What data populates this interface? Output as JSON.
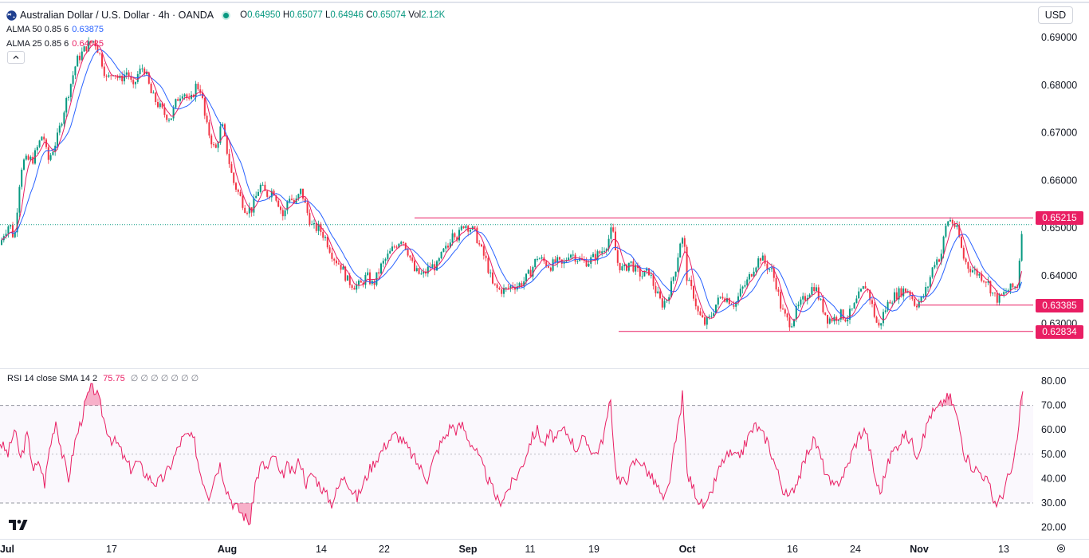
{
  "header": {
    "symbol_title": "Australian Dollar / U.S. Dollar · 4h · OANDA",
    "ohlc": [
      {
        "label": "O",
        "value": "0.64950"
      },
      {
        "label": "H",
        "value": "0.65077"
      },
      {
        "label": "L",
        "value": "0.64946"
      },
      {
        "label": "C",
        "value": "0.65074"
      },
      {
        "label": "Vol",
        "value": "2.12K"
      }
    ],
    "currency": "USD"
  },
  "indicators": {
    "alma50": {
      "name": "ALMA 50 0.85 6",
      "value": "0.63875",
      "color": "#2962ff"
    },
    "alma25": {
      "name": "ALMA 25 0.85 6",
      "value": "0.64025",
      "color": "#e91e63"
    },
    "rsi": {
      "name": "RSI 14 close SMA 14 2",
      "value": "75.75",
      "color": "#e91e63",
      "extras": "∅ ∅ ∅ ∅ ∅ ∅ ∅"
    }
  },
  "price_axis": {
    "ticks": [
      "0.69000",
      "0.68000",
      "0.67000",
      "0.66000",
      "0.65000",
      "0.64000",
      "0.63000"
    ],
    "badges": [
      "0.65215",
      "0.63385",
      "0.62834"
    ]
  },
  "rsi_axis": {
    "ticks": [
      "80.00",
      "70.00",
      "60.00",
      "50.00",
      "40.00",
      "30.00",
      "20.00"
    ]
  },
  "time_axis": {
    "ticks": [
      "Jul",
      "17",
      "Aug",
      "14",
      "22",
      "Sep",
      "11",
      "19",
      "Oct",
      "16",
      "24",
      "Nov",
      "13"
    ],
    "bold": [
      "Jul",
      "Aug",
      "Sep",
      "Oct",
      "Nov"
    ]
  },
  "colors": {
    "up": "#089981",
    "down": "#f23645",
    "accent": "#e91e63",
    "grid": "#e0e3eb"
  },
  "icons": {
    "logo": "tradingview-logo-icon",
    "settings": "gear-icon",
    "collapse": "chevron-up-icon",
    "flag": "australia-flag-icon",
    "status": "market-status-dot-icon"
  },
  "chart_data": {
    "type": "candlestick",
    "timeframe": "4h",
    "ylim": [
      0.625,
      0.695
    ],
    "support_resistance": [
      0.65215,
      0.63385,
      0.62834
    ],
    "last_close": 0.65074,
    "close_path": [
      [
        0,
        0.6465
      ],
      [
        5,
        0.649
      ],
      [
        12,
        0.651
      ],
      [
        18,
        0.6475
      ],
      [
        26,
        0.6625
      ],
      [
        30,
        0.664
      ],
      [
        42,
        0.6645
      ],
      [
        45,
        0.666
      ],
      [
        54,
        0.67
      ],
      [
        60,
        0.664
      ],
      [
        65,
        0.666
      ],
      [
        72,
        0.669
      ],
      [
        82,
        0.676
      ],
      [
        96,
        0.685
      ],
      [
        108,
        0.688
      ],
      [
        118,
        0.6895
      ],
      [
        126,
        0.686
      ],
      [
        134,
        0.681
      ],
      [
        142,
        0.683
      ],
      [
        150,
        0.681
      ],
      [
        160,
        0.683
      ],
      [
        167,
        0.679
      ],
      [
        172,
        0.682
      ],
      [
        180,
        0.684
      ],
      [
        190,
        0.678
      ],
      [
        198,
        0.676
      ],
      [
        206,
        0.674
      ],
      [
        214,
        0.673
      ],
      [
        222,
        0.677
      ],
      [
        230,
        0.679
      ],
      [
        238,
        0.676
      ],
      [
        246,
        0.68
      ],
      [
        252,
        0.679
      ],
      [
        258,
        0.672
      ],
      [
        264,
        0.669
      ],
      [
        270,
        0.666
      ],
      [
        278,
        0.672
      ],
      [
        285,
        0.666
      ],
      [
        292,
        0.66
      ],
      [
        300,
        0.657
      ],
      [
        308,
        0.654
      ],
      [
        316,
        0.654
      ],
      [
        326,
        0.659
      ],
      [
        334,
        0.657
      ],
      [
        343,
        0.658
      ],
      [
        350,
        0.655
      ],
      [
        356,
        0.652
      ],
      [
        362,
        0.657
      ],
      [
        370,
        0.655
      ],
      [
        378,
        0.658
      ],
      [
        384,
        0.654
      ],
      [
        392,
        0.65
      ],
      [
        400,
        0.65
      ],
      [
        408,
        0.648
      ],
      [
        418,
        0.644
      ],
      [
        428,
        0.642
      ],
      [
        436,
        0.639
      ],
      [
        444,
        0.638
      ],
      [
        452,
        0.638
      ],
      [
        460,
        0.64
      ],
      [
        468,
        0.638
      ],
      [
        478,
        0.642
      ],
      [
        486,
        0.644
      ],
      [
        494,
        0.646
      ],
      [
        504,
        0.648
      ],
      [
        512,
        0.645
      ],
      [
        520,
        0.641
      ],
      [
        530,
        0.64
      ],
      [
        540,
        0.642
      ],
      [
        548,
        0.642
      ],
      [
        556,
        0.645
      ],
      [
        562,
        0.646
      ],
      [
        568,
        0.65
      ],
      [
        574,
        0.648
      ],
      [
        582,
        0.651
      ],
      [
        590,
        0.65
      ],
      [
        596,
        0.649
      ],
      [
        602,
        0.646
      ],
      [
        610,
        0.643
      ],
      [
        618,
        0.638
      ],
      [
        626,
        0.637
      ],
      [
        634,
        0.637
      ],
      [
        642,
        0.638
      ],
      [
        650,
        0.638
      ],
      [
        658,
        0.639
      ],
      [
        666,
        0.641
      ],
      [
        674,
        0.644
      ],
      [
        682,
        0.643
      ],
      [
        690,
        0.642
      ],
      [
        698,
        0.643
      ],
      [
        706,
        0.642
      ],
      [
        714,
        0.645
      ],
      [
        722,
        0.644
      ],
      [
        730,
        0.643
      ],
      [
        738,
        0.643
      ],
      [
        746,
        0.644
      ],
      [
        754,
        0.645
      ],
      [
        762,
        0.647
      ],
      [
        768,
        0.65
      ],
      [
        774,
        0.643
      ],
      [
        782,
        0.641
      ],
      [
        790,
        0.643
      ],
      [
        798,
        0.641
      ],
      [
        806,
        0.64
      ],
      [
        814,
        0.641
      ],
      [
        822,
        0.637
      ],
      [
        830,
        0.634
      ],
      [
        836,
        0.635
      ],
      [
        842,
        0.638
      ],
      [
        848,
        0.642
      ],
      [
        854,
        0.648
      ],
      [
        858,
        0.647
      ],
      [
        862,
        0.639
      ],
      [
        870,
        0.636
      ],
      [
        876,
        0.632
      ],
      [
        884,
        0.63
      ],
      [
        890,
        0.631
      ],
      [
        898,
        0.634
      ],
      [
        906,
        0.636
      ],
      [
        914,
        0.635
      ],
      [
        922,
        0.634
      ],
      [
        930,
        0.637
      ],
      [
        938,
        0.639
      ],
      [
        946,
        0.642
      ],
      [
        954,
        0.644
      ],
      [
        962,
        0.642
      ],
      [
        968,
        0.641
      ],
      [
        974,
        0.638
      ],
      [
        980,
        0.633
      ],
      [
        986,
        0.631
      ],
      [
        992,
        0.63
      ],
      [
        1000,
        0.633
      ],
      [
        1008,
        0.635
      ],
      [
        1016,
        0.637
      ],
      [
        1022,
        0.638
      ],
      [
        1030,
        0.634
      ],
      [
        1038,
        0.631
      ],
      [
        1046,
        0.631
      ],
      [
        1054,
        0.632
      ],
      [
        1062,
        0.631
      ],
      [
        1070,
        0.633
      ],
      [
        1078,
        0.636
      ],
      [
        1086,
        0.638
      ],
      [
        1092,
        0.635
      ],
      [
        1098,
        0.631
      ],
      [
        1102,
        0.629
      ],
      [
        1108,
        0.632
      ],
      [
        1116,
        0.635
      ],
      [
        1124,
        0.636
      ],
      [
        1132,
        0.637
      ],
      [
        1140,
        0.637
      ],
      [
        1148,
        0.634
      ],
      [
        1156,
        0.635
      ],
      [
        1164,
        0.638
      ],
      [
        1172,
        0.643
      ],
      [
        1180,
        0.644
      ],
      [
        1186,
        0.65
      ],
      [
        1190,
        0.652
      ],
      [
        1196,
        0.651
      ],
      [
        1202,
        0.649
      ],
      [
        1208,
        0.644
      ],
      [
        1214,
        0.642
      ],
      [
        1222,
        0.641
      ],
      [
        1230,
        0.64
      ],
      [
        1238,
        0.639
      ],
      [
        1246,
        0.636
      ],
      [
        1252,
        0.635
      ],
      [
        1258,
        0.636
      ],
      [
        1264,
        0.637
      ],
      [
        1270,
        0.6375
      ],
      [
        1276,
        0.638
      ],
      [
        1279,
        0.644
      ],
      [
        1281,
        0.6495
      ],
      [
        1283,
        0.6507
      ]
    ],
    "rsi_path": [
      [
        0,
        55
      ],
      [
        10,
        50
      ],
      [
        18,
        60
      ],
      [
        26,
        48
      ],
      [
        34,
        58
      ],
      [
        42,
        44
      ],
      [
        50,
        46
      ],
      [
        56,
        38
      ],
      [
        62,
        52
      ],
      [
        70,
        64
      ],
      [
        78,
        50
      ],
      [
        86,
        40
      ],
      [
        94,
        55
      ],
      [
        102,
        64
      ],
      [
        108,
        72
      ],
      [
        114,
        77
      ],
      [
        120,
        76
      ],
      [
        126,
        70
      ],
      [
        132,
        62
      ],
      [
        140,
        56
      ],
      [
        148,
        54
      ],
      [
        156,
        48
      ],
      [
        164,
        44
      ],
      [
        172,
        47
      ],
      [
        180,
        43
      ],
      [
        188,
        40
      ],
      [
        196,
        38
      ],
      [
        204,
        40
      ],
      [
        212,
        44
      ],
      [
        220,
        50
      ],
      [
        228,
        56
      ],
      [
        236,
        58
      ],
      [
        244,
        55
      ],
      [
        250,
        44
      ],
      [
        256,
        38
      ],
      [
        262,
        33
      ],
      [
        268,
        40
      ],
      [
        276,
        46
      ],
      [
        284,
        36
      ],
      [
        292,
        30
      ],
      [
        300,
        27
      ],
      [
        308,
        24
      ],
      [
        314,
        22
      ],
      [
        320,
        38
      ],
      [
        328,
        46
      ],
      [
        336,
        44
      ],
      [
        344,
        50
      ],
      [
        352,
        40
      ],
      [
        360,
        45
      ],
      [
        368,
        42
      ],
      [
        376,
        48
      ],
      [
        384,
        38
      ],
      [
        392,
        42
      ],
      [
        400,
        38
      ],
      [
        408,
        34
      ],
      [
        416,
        30
      ],
      [
        424,
        36
      ],
      [
        432,
        42
      ],
      [
        440,
        36
      ],
      [
        448,
        32
      ],
      [
        456,
        38
      ],
      [
        464,
        44
      ],
      [
        472,
        48
      ],
      [
        480,
        52
      ],
      [
        488,
        56
      ],
      [
        496,
        58
      ],
      [
        504,
        56
      ],
      [
        512,
        52
      ],
      [
        520,
        48
      ],
      [
        528,
        44
      ],
      [
        536,
        40
      ],
      [
        544,
        48
      ],
      [
        552,
        54
      ],
      [
        560,
        58
      ],
      [
        566,
        62
      ],
      [
        572,
        60
      ],
      [
        580,
        62
      ],
      [
        588,
        56
      ],
      [
        596,
        52
      ],
      [
        604,
        46
      ],
      [
        612,
        40
      ],
      [
        620,
        34
      ],
      [
        626,
        30
      ],
      [
        634,
        34
      ],
      [
        642,
        38
      ],
      [
        650,
        42
      ],
      [
        658,
        48
      ],
      [
        666,
        56
      ],
      [
        674,
        60
      ],
      [
        682,
        54
      ],
      [
        690,
        58
      ],
      [
        698,
        56
      ],
      [
        706,
        60
      ],
      [
        714,
        58
      ],
      [
        722,
        52
      ],
      [
        730,
        56
      ],
      [
        738,
        54
      ],
      [
        746,
        50
      ],
      [
        754,
        54
      ],
      [
        760,
        62
      ],
      [
        766,
        72
      ],
      [
        772,
        44
      ],
      [
        778,
        38
      ],
      [
        786,
        40
      ],
      [
        794,
        46
      ],
      [
        802,
        48
      ],
      [
        810,
        44
      ],
      [
        818,
        40
      ],
      [
        826,
        36
      ],
      [
        832,
        30
      ],
      [
        838,
        36
      ],
      [
        844,
        48
      ],
      [
        850,
        60
      ],
      [
        856,
        74
      ],
      [
        862,
        42
      ],
      [
        870,
        36
      ],
      [
        878,
        30
      ],
      [
        886,
        28
      ],
      [
        892,
        34
      ],
      [
        900,
        42
      ],
      [
        908,
        48
      ],
      [
        916,
        50
      ],
      [
        924,
        48
      ],
      [
        932,
        52
      ],
      [
        940,
        58
      ],
      [
        948,
        62
      ],
      [
        956,
        58
      ],
      [
        962,
        56
      ],
      [
        970,
        48
      ],
      [
        978,
        40
      ],
      [
        984,
        34
      ],
      [
        990,
        32
      ],
      [
        998,
        38
      ],
      [
        1006,
        44
      ],
      [
        1014,
        52
      ],
      [
        1022,
        56
      ],
      [
        1030,
        48
      ],
      [
        1038,
        40
      ],
      [
        1046,
        36
      ],
      [
        1054,
        40
      ],
      [
        1062,
        44
      ],
      [
        1070,
        52
      ],
      [
        1078,
        58
      ],
      [
        1086,
        60
      ],
      [
        1092,
        50
      ],
      [
        1098,
        40
      ],
      [
        1104,
        34
      ],
      [
        1110,
        42
      ],
      [
        1118,
        50
      ],
      [
        1126,
        54
      ],
      [
        1134,
        58
      ],
      [
        1142,
        56
      ],
      [
        1150,
        50
      ],
      [
        1158,
        56
      ],
      [
        1166,
        66
      ],
      [
        1174,
        68
      ],
      [
        1180,
        70
      ],
      [
        1186,
        73
      ],
      [
        1192,
        73
      ],
      [
        1198,
        68
      ],
      [
        1204,
        60
      ],
      [
        1210,
        50
      ],
      [
        1216,
        46
      ],
      [
        1224,
        44
      ],
      [
        1232,
        42
      ],
      [
        1240,
        38
      ],
      [
        1246,
        31
      ],
      [
        1252,
        30
      ],
      [
        1258,
        34
      ],
      [
        1264,
        40
      ],
      [
        1270,
        44
      ],
      [
        1276,
        55
      ],
      [
        1280,
        70
      ],
      [
        1283,
        75.75
      ]
    ]
  }
}
